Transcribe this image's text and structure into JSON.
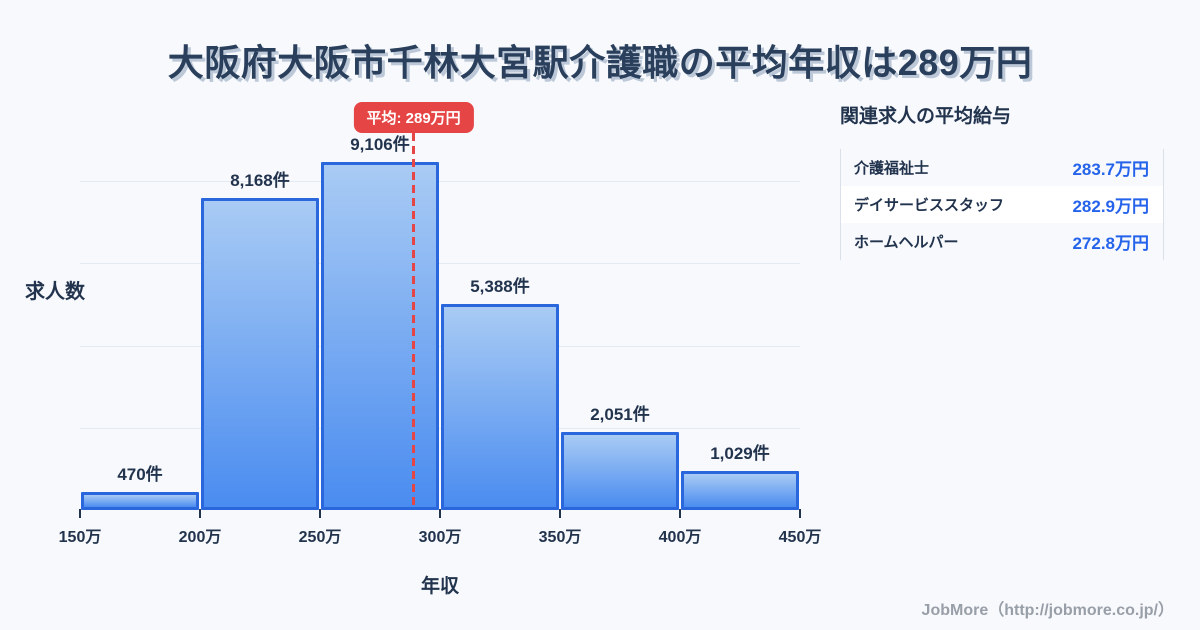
{
  "title": "大阪府大阪市千林大宮駅介護職の平均年収は289万円",
  "chart_data": {
    "type": "bar",
    "title": "大阪府大阪市千林大宮駅介護職の平均年収は289万円",
    "xlabel": "年収",
    "ylabel": "求人数",
    "x_tick_labels": [
      "150万",
      "200万",
      "250万",
      "300万",
      "350万",
      "400万",
      "450万"
    ],
    "bin_edges_man_yen": [
      150,
      200,
      250,
      300,
      350,
      400,
      450
    ],
    "values": [
      470,
      8168,
      9106,
      5388,
      2051,
      1029
    ],
    "bar_labels": [
      "470件",
      "8,168件",
      "9,106件",
      "5,388件",
      "2,051件",
      "1,029件"
    ],
    "average": {
      "label": "平均: 289万円",
      "value": 289
    },
    "x_range": [
      150,
      450
    ],
    "grid": true,
    "legend": "none"
  },
  "side_panel": {
    "title": "関連求人の平均給与",
    "rows": [
      {
        "label": "介護福祉士",
        "value": "283.7万円"
      },
      {
        "label": "デイサービススタッフ",
        "value": "282.9万円"
      },
      {
        "label": "ホームヘルパー",
        "value": "272.8万円"
      }
    ]
  },
  "footer": {
    "credit": "JobMore（http://jobmore.co.jp/）"
  },
  "colors": {
    "background": "#f7f9fc",
    "heading_text": "#2a3f5c",
    "average_red": "#e64545",
    "value_blue": "#2563eb",
    "bar_border": "#2a67dd",
    "bar_gradient_top": "#a9cbf4",
    "bar_gradient_bottom": "#4a8cf0",
    "gridline": "#e4eaf2"
  }
}
